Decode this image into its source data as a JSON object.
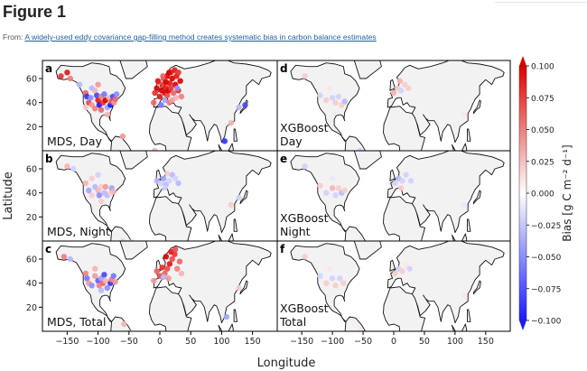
{
  "page": {
    "figure_label": "Figure 1",
    "from_prefix": "From:",
    "from_link": "A widely-used eddy covariance gap-filling method creates systematic bias in carbon balance estimates"
  },
  "chart_data": {
    "type": "scatter",
    "subtype": "geographic-map-grid",
    "xlabel": "Longitude",
    "ylabel": "Latitude",
    "x_ticks": [
      -150,
      -100,
      -50,
      0,
      50,
      100,
      150
    ],
    "y_ticks": [
      20,
      40,
      60
    ],
    "xlim": [
      -190,
      190
    ],
    "ylim": [
      0,
      75
    ],
    "colorbar": {
      "label": "Bias [g C m⁻² d⁻¹]",
      "ticks": [
        "0.100",
        "0.075",
        "0.050",
        "0.025",
        "0.000",
        "−0.025",
        "−0.050",
        "−0.075",
        "−0.100"
      ],
      "range": [
        -0.1,
        0.1
      ],
      "colors": {
        "low": "#1a1aff",
        "mid": "#ffffff",
        "high": "#e00000"
      }
    },
    "colors": {
      "land": "#f2f2f2",
      "coast": "#111111",
      "panel_border": "#000000"
    },
    "panels": [
      {
        "id": "a",
        "label": "a",
        "title_lines": [
          "MDS, Day"
        ],
        "col": 0,
        "row": 0
      },
      {
        "id": "b",
        "label": "b",
        "title_lines": [
          "MDS, Night"
        ],
        "col": 0,
        "row": 1
      },
      {
        "id": "c",
        "label": "c",
        "title_lines": [
          "MDS, Total"
        ],
        "col": 0,
        "row": 2
      },
      {
        "id": "d",
        "label": "d",
        "title_lines": [
          "XGBoost",
          "Day"
        ],
        "col": 1,
        "row": 0
      },
      {
        "id": "e",
        "label": "e",
        "title_lines": [
          "XGBoost",
          "Night"
        ],
        "col": 1,
        "row": 1
      },
      {
        "id": "f",
        "label": "f",
        "title_lines": [
          "XGBoost",
          "Total"
        ],
        "col": 1,
        "row": 2
      }
    ],
    "series": [
      {
        "panel": "a",
        "points": [
          [
            -160,
            62,
            0.08
          ],
          [
            -150,
            65,
            0.09
          ],
          [
            -145,
            60,
            0.05
          ],
          [
            -130,
            55,
            -0.03
          ],
          [
            -120,
            48,
            0.06
          ],
          [
            -118,
            45,
            -0.09
          ],
          [
            -115,
            40,
            0.07
          ],
          [
            -112,
            44,
            -0.05
          ],
          [
            -110,
            38,
            0.04
          ],
          [
            -105,
            50,
            0.03
          ],
          [
            -102,
            46,
            -0.08
          ],
          [
            -100,
            42,
            0.09
          ],
          [
            -98,
            38,
            -0.1
          ],
          [
            -95,
            45,
            0.05
          ],
          [
            -92,
            40,
            0.08
          ],
          [
            -90,
            47,
            -0.06
          ],
          [
            -88,
            42,
            0.1
          ],
          [
            -85,
            36,
            -0.04
          ],
          [
            -82,
            44,
            0.03
          ],
          [
            -80,
            38,
            -0.1
          ],
          [
            -78,
            41,
            0.07
          ],
          [
            -76,
            45,
            -0.08
          ],
          [
            -74,
            40,
            0.04
          ],
          [
            -72,
            43,
            0.06
          ],
          [
            -70,
            47,
            -0.05
          ],
          [
            -100,
            55,
            0.04
          ],
          [
            -110,
            52,
            -0.03
          ],
          [
            -95,
            34,
            0.06
          ],
          [
            -105,
            35,
            0.05
          ],
          [
            -120,
            36,
            0.02
          ],
          [
            -85,
            30,
            0.03
          ],
          [
            -60,
            12,
            0.04
          ],
          [
            -52,
            -2,
            0.08
          ],
          [
            -10,
            40,
            0.06
          ],
          [
            -8,
            48,
            0.08
          ],
          [
            -5,
            52,
            0.1
          ],
          [
            0,
            45,
            0.09
          ],
          [
            3,
            50,
            0.1
          ],
          [
            5,
            55,
            0.08
          ],
          [
            8,
            48,
            0.1
          ],
          [
            10,
            52,
            0.09
          ],
          [
            12,
            46,
            0.07
          ],
          [
            14,
            50,
            0.1
          ],
          [
            16,
            56,
            0.09
          ],
          [
            18,
            52,
            0.08
          ],
          [
            20,
            60,
            0.1
          ],
          [
            22,
            48,
            0.06
          ],
          [
            25,
            55,
            0.1
          ],
          [
            27,
            62,
            0.09
          ],
          [
            30,
            50,
            0.08
          ],
          [
            33,
            58,
            0.1
          ],
          [
            6,
            60,
            0.07
          ],
          [
            12,
            62,
            0.1
          ],
          [
            18,
            65,
            0.08
          ],
          [
            24,
            67,
            0.09
          ],
          [
            -2,
            57,
            0.06
          ],
          [
            8,
            42,
            -0.04
          ],
          [
            15,
            40,
            0.05
          ],
          [
            2,
            38,
            -0.06
          ],
          [
            20,
            42,
            0.04
          ],
          [
            35,
            45,
            0.05
          ],
          [
            26,
            44,
            0.03
          ],
          [
            -3,
            58,
            0.09
          ],
          [
            10,
            57,
            0.1
          ],
          [
            30,
            65,
            0.08
          ],
          [
            15,
            65,
            0.1
          ],
          [
            5,
            62,
            0.06
          ],
          [
            28,
            52,
            -0.05
          ],
          [
            105,
            8,
            -0.09
          ],
          [
            115,
            23,
            0.03
          ],
          [
            128,
            36,
            -0.03
          ],
          [
            138,
            38,
            -0.08
          ],
          [
            -8,
            0,
            0.03
          ]
        ]
      },
      {
        "panel": "b",
        "points": [
          [
            -150,
            62,
            0.03
          ],
          [
            -140,
            60,
            -0.02
          ],
          [
            -120,
            48,
            0.03
          ],
          [
            -115,
            42,
            -0.04
          ],
          [
            -110,
            38,
            0.02
          ],
          [
            -105,
            45,
            -0.03
          ],
          [
            -100,
            42,
            0.03
          ],
          [
            -98,
            38,
            -0.05
          ],
          [
            -95,
            45,
            0.02
          ],
          [
            -90,
            40,
            -0.03
          ],
          [
            -88,
            45,
            0.04
          ],
          [
            -85,
            38,
            -0.03
          ],
          [
            -80,
            40,
            0.02
          ],
          [
            -78,
            44,
            -0.04
          ],
          [
            -75,
            41,
            0.03
          ],
          [
            -110,
            52,
            0.02
          ],
          [
            -100,
            55,
            -0.02
          ],
          [
            -95,
            33,
            0.02
          ],
          [
            -5,
            50,
            -0.03
          ],
          [
            2,
            48,
            -0.02
          ],
          [
            6,
            52,
            -0.04
          ],
          [
            10,
            47,
            -0.03
          ],
          [
            15,
            50,
            -0.02
          ],
          [
            20,
            55,
            -0.03
          ],
          [
            25,
            52,
            -0.02
          ],
          [
            12,
            56,
            0.02
          ],
          [
            8,
            44,
            -0.02
          ],
          [
            30,
            48,
            -0.03
          ],
          [
            115,
            30,
            0.02
          ],
          [
            128,
            36,
            -0.02
          ],
          [
            -60,
            0,
            0.02
          ],
          [
            -45,
            -1,
            -0.02
          ]
        ]
      },
      {
        "panel": "c",
        "points": [
          [
            -155,
            62,
            0.05
          ],
          [
            -145,
            60,
            -0.03
          ],
          [
            -120,
            48,
            0.05
          ],
          [
            -118,
            44,
            -0.06
          ],
          [
            -115,
            40,
            0.04
          ],
          [
            -110,
            38,
            -0.05
          ],
          [
            -105,
            46,
            0.04
          ],
          [
            -100,
            42,
            -0.07
          ],
          [
            -98,
            38,
            0.05
          ],
          [
            -95,
            44,
            -0.04
          ],
          [
            -92,
            40,
            0.06
          ],
          [
            -90,
            47,
            -0.08
          ],
          [
            -88,
            42,
            0.03
          ],
          [
            -85,
            36,
            -0.05
          ],
          [
            -80,
            40,
            -0.09
          ],
          [
            -78,
            43,
            0.05
          ],
          [
            -75,
            46,
            -0.06
          ],
          [
            -72,
            41,
            0.04
          ],
          [
            -105,
            52,
            0.03
          ],
          [
            -95,
            34,
            -0.03
          ],
          [
            -10,
            42,
            0.04
          ],
          [
            -5,
            50,
            0.06
          ],
          [
            0,
            46,
            0.07
          ],
          [
            4,
            53,
            0.08
          ],
          [
            8,
            48,
            0.06
          ],
          [
            12,
            52,
            0.07
          ],
          [
            16,
            56,
            0.09
          ],
          [
            20,
            60,
            0.07
          ],
          [
            24,
            64,
            0.08
          ],
          [
            28,
            52,
            0.05
          ],
          [
            32,
            58,
            0.06
          ],
          [
            10,
            62,
            0.1
          ],
          [
            18,
            66,
            0.09
          ],
          [
            25,
            68,
            0.07
          ],
          [
            6,
            45,
            -0.03
          ],
          [
            14,
            44,
            0.04
          ],
          [
            35,
            48,
            0.03
          ],
          [
            -58,
            6,
            0.03
          ],
          [
            -50,
            -1,
            0.02
          ],
          [
            108,
            12,
            -0.04
          ],
          [
            128,
            36,
            0.02
          ]
        ]
      },
      {
        "panel": "d",
        "points": [
          [
            -145,
            62,
            0.02
          ],
          [
            -120,
            46,
            -0.02
          ],
          [
            -110,
            42,
            0.02
          ],
          [
            -100,
            44,
            -0.02
          ],
          [
            -95,
            40,
            0.02
          ],
          [
            -90,
            45,
            -0.02
          ],
          [
            -85,
            38,
            0.02
          ],
          [
            -80,
            41,
            -0.03
          ],
          [
            -105,
            52,
            0.01
          ],
          [
            0,
            48,
            0.03
          ],
          [
            6,
            52,
            0.02
          ],
          [
            12,
            50,
            -0.02
          ],
          [
            18,
            55,
            0.02
          ],
          [
            24,
            52,
            0.02
          ],
          [
            10,
            58,
            0.03
          ],
          [
            115,
            30,
            0.01
          ],
          [
            -55,
            0,
            -0.02
          ]
        ]
      },
      {
        "panel": "e",
        "points": [
          [
            -145,
            62,
            -0.02
          ],
          [
            -120,
            46,
            0.02
          ],
          [
            -110,
            40,
            -0.02
          ],
          [
            -100,
            44,
            0.03
          ],
          [
            -95,
            38,
            -0.02
          ],
          [
            -90,
            44,
            0.02
          ],
          [
            -85,
            40,
            -0.03
          ],
          [
            -80,
            42,
            0.02
          ],
          [
            -100,
            52,
            -0.01
          ],
          [
            2,
            48,
            -0.02
          ],
          [
            8,
            52,
            -0.03
          ],
          [
            14,
            50,
            -0.02
          ],
          [
            20,
            55,
            -0.02
          ],
          [
            12,
            44,
            0.02
          ],
          [
            28,
            50,
            -0.02
          ],
          [
            115,
            30,
            -0.01
          ],
          [
            -55,
            0,
            0.01
          ]
        ]
      },
      {
        "panel": "f",
        "points": [
          [
            -145,
            62,
            0.02
          ],
          [
            -120,
            46,
            -0.02
          ],
          [
            -110,
            40,
            0.02
          ],
          [
            -100,
            44,
            -0.02
          ],
          [
            -95,
            38,
            0.02
          ],
          [
            -88,
            44,
            -0.02
          ],
          [
            -82,
            40,
            0.02
          ],
          [
            -104,
            52,
            0.01
          ],
          [
            2,
            48,
            0.02
          ],
          [
            8,
            52,
            -0.02
          ],
          [
            14,
            50,
            0.02
          ],
          [
            20,
            55,
            0.01
          ],
          [
            26,
            52,
            -0.02
          ],
          [
            115,
            30,
            0.01
          ],
          [
            -55,
            0,
            0.01
          ]
        ]
      }
    ]
  }
}
